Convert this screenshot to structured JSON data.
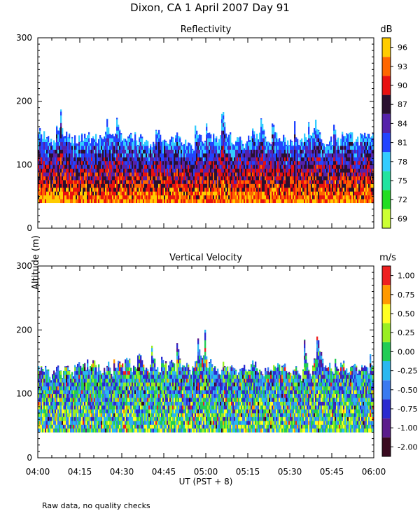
{
  "page_title": "Dixon, CA   1 April 2007   Day  91",
  "footnote": "Raw data, no quality checks",
  "y_axis_label": "Altitude (m)",
  "x_axis_label": "UT   (PST + 8)",
  "chart_data": [
    {
      "type": "heatmap",
      "title": "Reflectivity",
      "colorbar_unit": "dB",
      "colorbar_ticks": [
        "69",
        "72",
        "75",
        "78",
        "81",
        "84",
        "87",
        "90",
        "93",
        "96"
      ],
      "colorbar_colors": [
        "#ccff33",
        "#22dd22",
        "#22e3a0",
        "#33ccff",
        "#2244ff",
        "#5522aa",
        "#2a1030",
        "#e81010",
        "#ff6600",
        "#ffcc00"
      ],
      "x_ticks": [
        "04:00",
        "04:15",
        "04:30",
        "04:45",
        "05:00",
        "05:15",
        "05:30",
        "05:45",
        "06:00"
      ],
      "x_range": [
        "04:00",
        "06:00"
      ],
      "y_ticks": [
        0,
        100,
        200,
        300
      ],
      "ylim": [
        0,
        300
      ],
      "echo_base_m": 40,
      "typical_top_m": [
        120,
        160
      ],
      "max_top_m": 240
    },
    {
      "type": "heatmap",
      "title": "Vertical Velocity",
      "colorbar_unit": "m/s",
      "colorbar_ticks": [
        "-2.00",
        "-1.00",
        "-0.75",
        "-0.50",
        "-0.25",
        "0.00",
        "0.25",
        "0.50",
        "0.75",
        "1.00"
      ],
      "colorbar_colors": [
        "#3a0a20",
        "#5b1c8c",
        "#2a2ad0",
        "#3a7af0",
        "#2ab8f0",
        "#22cc55",
        "#99ee22",
        "#ffff22",
        "#ff9900",
        "#ee2020"
      ],
      "x_ticks": [
        "04:00",
        "04:15",
        "04:30",
        "04:45",
        "05:00",
        "05:15",
        "05:30",
        "05:45",
        "06:00"
      ],
      "x_range": [
        "04:00",
        "06:00"
      ],
      "y_ticks": [
        0,
        100,
        200,
        300
      ],
      "ylim": [
        0,
        300
      ],
      "echo_base_m": 40,
      "typical_top_m": [
        120,
        160
      ],
      "max_top_m": 240
    }
  ]
}
